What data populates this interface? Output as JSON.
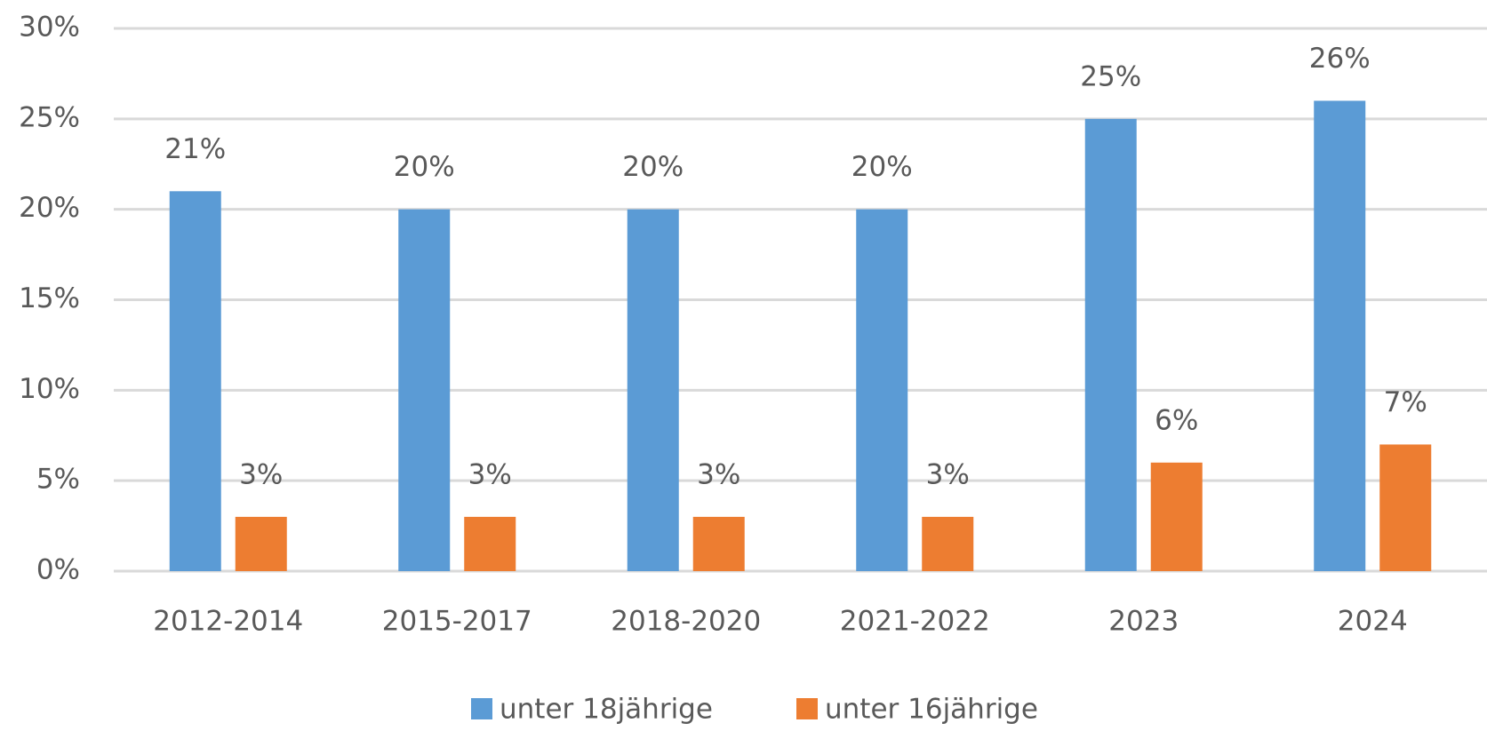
{
  "chart_data": {
    "type": "bar",
    "categories": [
      "2012-2014",
      "2015-2017",
      "2018-2020",
      "2021-2022",
      "2023",
      "2024"
    ],
    "series": [
      {
        "name": "unter 18jährige",
        "color": "#5b9bd5",
        "values": [
          21,
          20,
          20,
          20,
          25,
          26
        ],
        "value_labels": [
          "21%",
          "20%",
          "20%",
          "20%",
          "25%",
          "26%"
        ]
      },
      {
        "name": "unter 16jährige",
        "color": "#ed7d31",
        "values": [
          3,
          3,
          3,
          3,
          6,
          7
        ],
        "value_labels": [
          "3%",
          "3%",
          "3%",
          "3%",
          "6%",
          "7%"
        ]
      }
    ],
    "ylim": [
      0,
      30
    ],
    "yticks": [
      {
        "value": 0,
        "label": "0%"
      },
      {
        "value": 5,
        "label": "5%"
      },
      {
        "value": 10,
        "label": "10%"
      },
      {
        "value": 15,
        "label": "15%"
      },
      {
        "value": 20,
        "label": "20%"
      },
      {
        "value": 25,
        "label": "25%"
      },
      {
        "value": 30,
        "label": "30%"
      }
    ],
    "grid": true,
    "legend": "bottom"
  }
}
